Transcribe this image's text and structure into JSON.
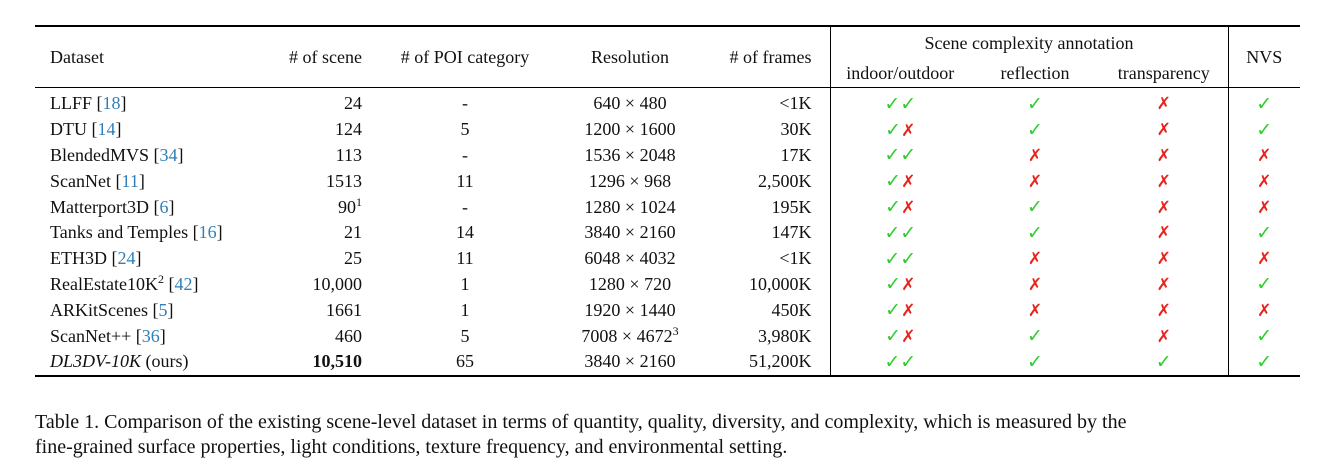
{
  "table": {
    "headers": [
      "Dataset",
      "# of scene",
      "# of POI category",
      "Resolution",
      "# of frames"
    ],
    "group_header": "Scene complexity annotation",
    "sub_headers": [
      "indoor/outdoor",
      "reflection",
      "transparency"
    ],
    "nvs_header": "NVS",
    "cite_brackets": [
      "[",
      "]"
    ],
    "rows": [
      {
        "name": "LLFF",
        "cite": "18",
        "scene": "24",
        "poi": "-",
        "resolution": "640 × 480",
        "frames": "<1K",
        "indoor_outdoor": [
          "✓",
          "✓"
        ],
        "reflection": "✓",
        "transparency": "✗",
        "nvs": "✓"
      },
      {
        "name": "DTU",
        "cite": "14",
        "scene": "124",
        "poi": "5",
        "resolution": "1200 × 1600",
        "frames": "30K",
        "indoor_outdoor": [
          "✓",
          "✗"
        ],
        "reflection": "✓",
        "transparency": "✗",
        "nvs": "✓"
      },
      {
        "name": "BlendedMVS",
        "cite": "34",
        "scene": "113",
        "poi": "-",
        "resolution": "1536 × 2048",
        "frames": "17K",
        "indoor_outdoor": [
          "✓",
          "✓"
        ],
        "reflection": "✗",
        "transparency": "✗",
        "nvs": "✗"
      },
      {
        "name": "ScanNet",
        "cite": "11",
        "scene": "1513",
        "poi": "11",
        "resolution": "1296 × 968",
        "frames": "2,500K",
        "indoor_outdoor": [
          "✓",
          "✗"
        ],
        "reflection": "✗",
        "transparency": "✗",
        "nvs": "✗"
      },
      {
        "name": "Matterport3D",
        "cite": "6",
        "scene": "90",
        "scene_sup": "1",
        "poi": "-",
        "resolution": "1280 × 1024",
        "frames": "195K",
        "indoor_outdoor": [
          "✓",
          "✗"
        ],
        "reflection": "✓",
        "transparency": "✗",
        "nvs": "✗"
      },
      {
        "name": "Tanks and Temples",
        "cite": "16",
        "scene": "21",
        "poi": "14",
        "resolution": "3840 × 2160",
        "frames": "147K",
        "indoor_outdoor": [
          "✓",
          "✓"
        ],
        "reflection": "✓",
        "transparency": "✗",
        "nvs": "✓"
      },
      {
        "name": "ETH3D",
        "cite": "24",
        "scene": "25",
        "poi": "11",
        "resolution": "6048 × 4032",
        "frames": "<1K",
        "indoor_outdoor": [
          "✓",
          "✓"
        ],
        "reflection": "✗",
        "transparency": "✗",
        "nvs": "✗"
      },
      {
        "name": "RealEstate10K",
        "name_sup": "2",
        "cite": "42",
        "scene": "10,000",
        "poi": "1",
        "resolution": "1280 × 720",
        "frames": "10,000K",
        "indoor_outdoor": [
          "✓",
          "✗"
        ],
        "reflection": "✗",
        "transparency": "✗",
        "nvs": "✓"
      },
      {
        "name": "ARKitScenes",
        "cite": "5",
        "scene": "1661",
        "poi": "1",
        "resolution": "1920 × 1440",
        "frames": "450K",
        "indoor_outdoor": [
          "✓",
          "✗"
        ],
        "reflection": "✗",
        "transparency": "✗",
        "nvs": "✗"
      },
      {
        "name": "ScanNet++",
        "cite": "36",
        "scene": "460",
        "poi": "5",
        "resolution": "7008 × 4672",
        "resolution_sup": "3",
        "frames": "3,980K",
        "indoor_outdoor": [
          "✓",
          "✗"
        ],
        "reflection": "✓",
        "transparency": "✗",
        "nvs": "✓"
      },
      {
        "name": "DL3DV-10K",
        "name_italic": true,
        "suffix": "(ours)",
        "scene": "10,510",
        "scene_bold": true,
        "poi": "65",
        "resolution": "3840 × 2160",
        "frames": "51,200K",
        "indoor_outdoor": [
          "✓",
          "✓"
        ],
        "reflection": "✓",
        "transparency": "✓",
        "nvs": "✓"
      }
    ]
  },
  "caption": [
    "Table 1. Comparison of the existing scene-level dataset in terms of quantity, quality, diversity, and complexity, which is measured by the",
    "fine-grained surface properties, light conditions, texture frequency, and environmental setting."
  ]
}
